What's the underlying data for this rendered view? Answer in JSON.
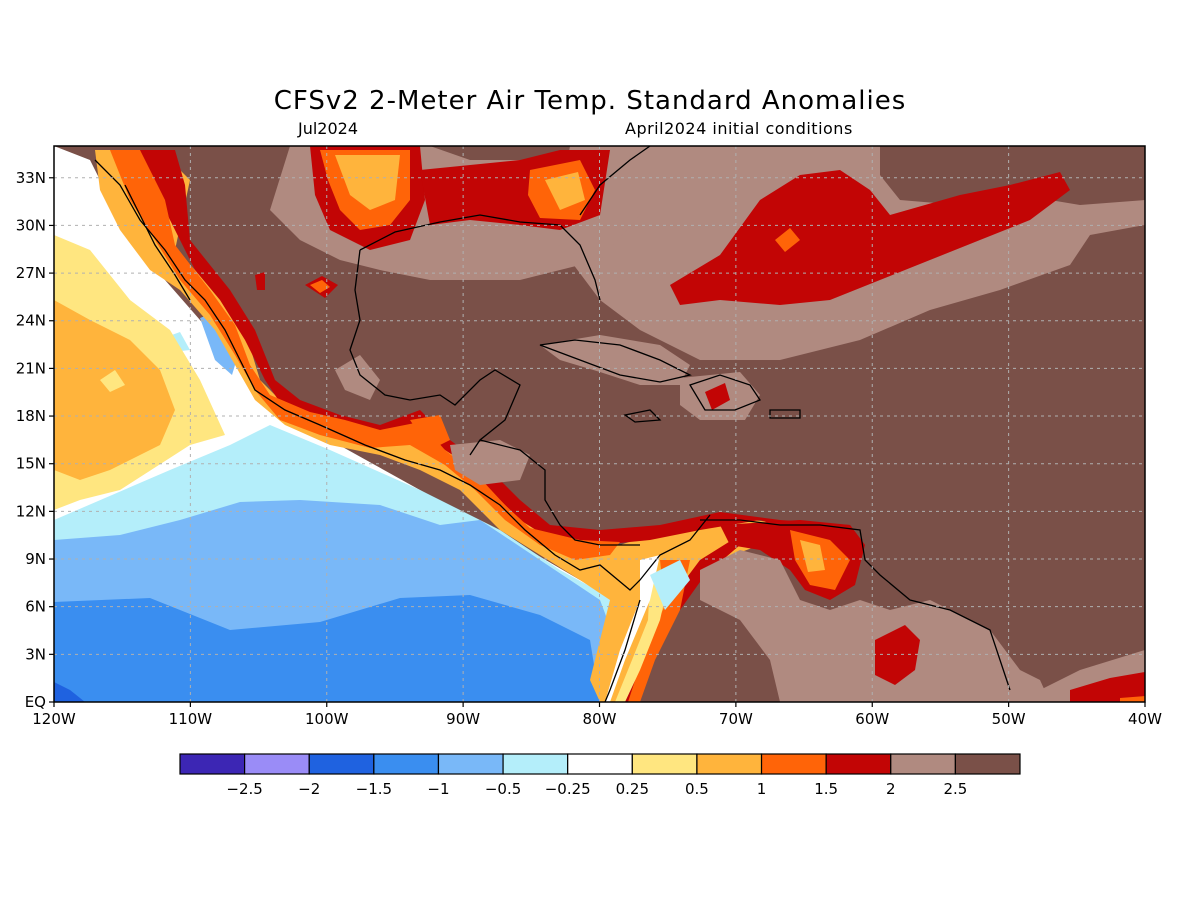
{
  "title": "CFSv2 2-Meter Air Temp. Standard Anomalies",
  "subtitle_left": "Jul2024",
  "subtitle_right": "April2024 initial conditions",
  "lat_labels": [
    "EQ",
    "3N",
    "6N",
    "9N",
    "12N",
    "15N",
    "18N",
    "21N",
    "24N",
    "27N",
    "30N",
    "33N"
  ],
  "lon_labels": [
    "120W",
    "110W",
    "100W",
    "90W",
    "80W",
    "70W",
    "60W",
    "50W",
    "40W"
  ],
  "map_extent": {
    "lon_min": -120,
    "lon_max": -40,
    "lat_min": 0,
    "lat_max": 35
  },
  "legend": {
    "labels": [
      "-2.5",
      "-2",
      "-1.5",
      "-1",
      "-0.5",
      "-0.25",
      "0.25",
      "0.5",
      "1",
      "1.5",
      "2",
      "2.5"
    ],
    "colors": [
      "#3c26b4",
      "#9a8cf7",
      "#1f62e0",
      "#3a8ef0",
      "#79b8f8",
      "#b4eefa",
      "#ffffff",
      "#ffe680",
      "#ffb43c",
      "#ff6408",
      "#c20505",
      "#b08a80",
      "#7a5048"
    ]
  },
  "palette": {
    "brown": "#7a5048",
    "rose": "#b08a80",
    "red": "#c20505",
    "orange": "#ff6408",
    "lightorange": "#ffb43c",
    "yellow": "#ffe680",
    "white": "#ffffff",
    "cyan": "#b4eefa",
    "lightblue": "#79b8f8",
    "blue": "#3a8ef0",
    "darkblue": "#1f62e0"
  }
}
